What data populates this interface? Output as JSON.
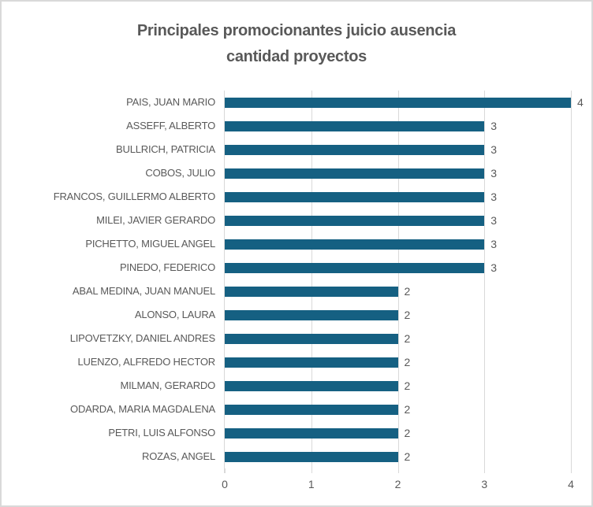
{
  "chart_data": {
    "type": "bar",
    "orientation": "horizontal",
    "title": "Principales promocionantes juicio ausencia cantidad proyectos",
    "title_lines": [
      "Principales promocionantes juicio ausencia",
      "cantidad proyectos"
    ],
    "categories": [
      "PAIS, JUAN MARIO",
      "ASSEFF, ALBERTO",
      "BULLRICH, PATRICIA",
      "COBOS, JULIO",
      "FRANCOS, GUILLERMO ALBERTO",
      "MILEI, JAVIER GERARDO",
      "PICHETTO, MIGUEL ANGEL",
      "PINEDO, FEDERICO",
      "ABAL MEDINA, JUAN MANUEL",
      "ALONSO, LAURA",
      "LIPOVETZKY, DANIEL ANDRES",
      "LUENZO, ALFREDO HECTOR",
      "MILMAN, GERARDO",
      "ODARDA, MARIA MAGDALENA",
      "PETRI, LUIS ALFONSO",
      "ROZAS, ANGEL"
    ],
    "values": [
      4,
      3,
      3,
      3,
      3,
      3,
      3,
      3,
      2,
      2,
      2,
      2,
      2,
      2,
      2,
      2
    ],
    "data_labels_shown": true,
    "xlabel": "",
    "ylabel": "",
    "xlim": [
      0,
      4
    ],
    "x_ticks": [
      "0",
      "1",
      "2",
      "3",
      "4"
    ],
    "grid": "vertical",
    "legend": "none",
    "colors": {
      "bar": "#156082",
      "text": "#595959",
      "gridline": "#d9d9d9",
      "border": "#d9d9d9",
      "background": "#ffffff"
    }
  }
}
